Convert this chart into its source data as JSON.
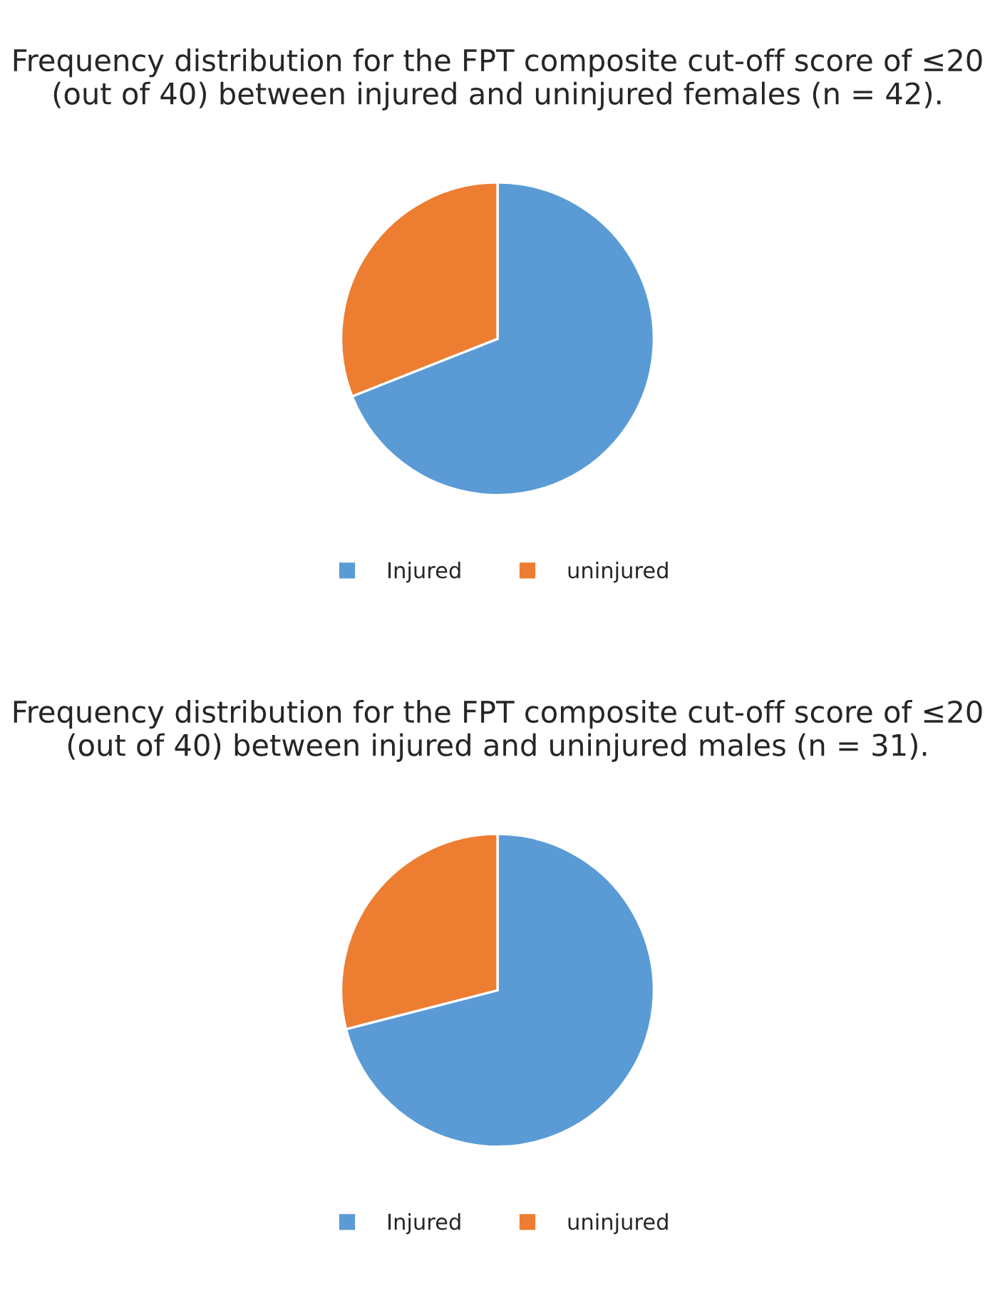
{
  "chart_data": [
    {
      "type": "pie",
      "title": "Frequency distribution for the FPT composite cut-off score of ≤20 (out of 40) between injured and uninjured females (n = 42).",
      "categories": [
        "Injured",
        "uninjured"
      ],
      "values": [
        69,
        31
      ],
      "colors": [
        "#5b9bd5",
        "#ed7d31"
      ],
      "legend": "bottom"
    },
    {
      "type": "pie",
      "title": "Frequency distribution for the FPT composite cut-off score of ≤20 (out of 40) between injured and uninjured males (n = 31).",
      "categories": [
        "Injured",
        "uninjured"
      ],
      "values": [
        71,
        29
      ],
      "colors": [
        "#5b9bd5",
        "#ed7d31"
      ],
      "legend": "bottom"
    }
  ]
}
